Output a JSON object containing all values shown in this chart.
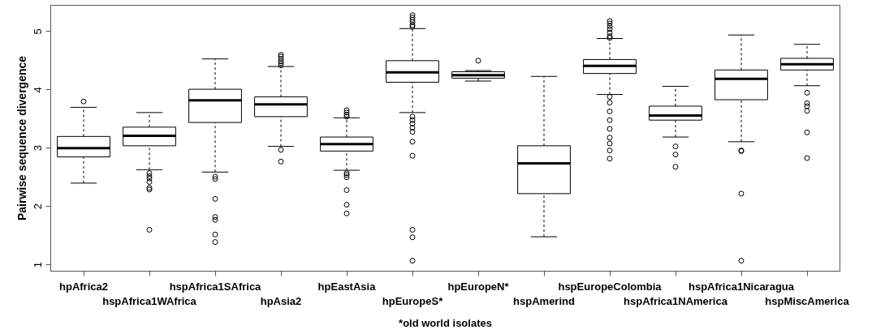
{
  "chart_data": {
    "type": "box",
    "ylabel": "Pairwise sequence divergence",
    "annotations": [
      "*old world isolates"
    ],
    "ylim": [
      0.89,
      5.45
    ],
    "yticks": [
      1,
      2,
      3,
      4,
      5
    ],
    "grid": false,
    "categories": [
      "hpAfrica2",
      "hspAfrica1WAfrica",
      "hspAfrica1SAfrica",
      "hpAsia2",
      "hpEastAsia",
      "hpEuropeS*",
      "hpEuropeN*",
      "hspAmerind",
      "hspEuropeColombia",
      "hspAfrica1NAmerica",
      "hspAfrica1Nicaragua",
      "hspMiscAmerica"
    ],
    "boxes": [
      {
        "low": 2.4,
        "q1": 2.85,
        "median": 3.0,
        "q3": 3.2,
        "high": 3.7,
        "outliers": [
          3.8
        ]
      },
      {
        "low": 2.63,
        "q1": 3.04,
        "median": 3.21,
        "q3": 3.36,
        "high": 3.61,
        "outliers": [
          2.57,
          2.52,
          2.48,
          2.42,
          2.32,
          2.29,
          1.6
        ]
      },
      {
        "low": 2.59,
        "q1": 3.44,
        "median": 3.82,
        "q3": 4.01,
        "high": 4.53,
        "outliers": [
          2.51,
          2.47,
          2.13,
          1.82,
          1.77,
          1.52,
          1.39
        ]
      },
      {
        "low": 3.03,
        "q1": 3.54,
        "median": 3.75,
        "q3": 3.88,
        "high": 4.4,
        "outliers": [
          4.6,
          4.57,
          4.53,
          4.49,
          4.46,
          4.42,
          2.97,
          2.77
        ]
      },
      {
        "low": 2.62,
        "q1": 2.95,
        "median": 3.07,
        "q3": 3.19,
        "high": 3.52,
        "outliers": [
          3.65,
          3.61,
          3.57,
          3.54,
          2.57,
          2.54,
          2.5,
          2.28,
          2.03,
          1.88
        ]
      },
      {
        "low": 3.61,
        "q1": 4.13,
        "median": 4.3,
        "q3": 4.5,
        "high": 5.05,
        "outliers": [
          5.28,
          5.24,
          5.2,
          5.16,
          5.11,
          5.08,
          3.54,
          3.48,
          3.42,
          3.35,
          3.28,
          3.11,
          2.87,
          1.6,
          1.47,
          1.07
        ]
      },
      {
        "low": 4.15,
        "q1": 4.2,
        "median": 4.25,
        "q3": 4.31,
        "high": 4.33,
        "outliers": [
          4.5
        ]
      },
      {
        "low": 1.48,
        "q1": 2.22,
        "median": 2.74,
        "q3": 3.04,
        "high": 4.23
      },
      {
        "low": 3.92,
        "q1": 4.28,
        "median": 4.41,
        "q3": 4.52,
        "high": 4.88,
        "outliers": [
          5.18,
          5.14,
          5.09,
          5.04,
          4.98,
          4.92,
          4.89,
          3.88,
          3.78,
          3.63,
          3.48,
          3.33,
          3.18,
          3.08,
          2.96,
          2.82
        ]
      },
      {
        "low": 3.19,
        "q1": 3.48,
        "median": 3.56,
        "q3": 3.72,
        "high": 4.06,
        "outliers": [
          3.03,
          2.89,
          2.68
        ]
      },
      {
        "low": 3.11,
        "q1": 3.83,
        "median": 4.19,
        "q3": 4.34,
        "high": 4.94,
        "outliers": [
          2.96,
          2.95,
          2.22,
          1.07
        ]
      },
      {
        "low": 4.07,
        "q1": 4.34,
        "median": 4.44,
        "q3": 4.54,
        "high": 4.78,
        "outliers": [
          3.95,
          3.77,
          3.72,
          3.64,
          3.27,
          2.83
        ]
      }
    ]
  }
}
